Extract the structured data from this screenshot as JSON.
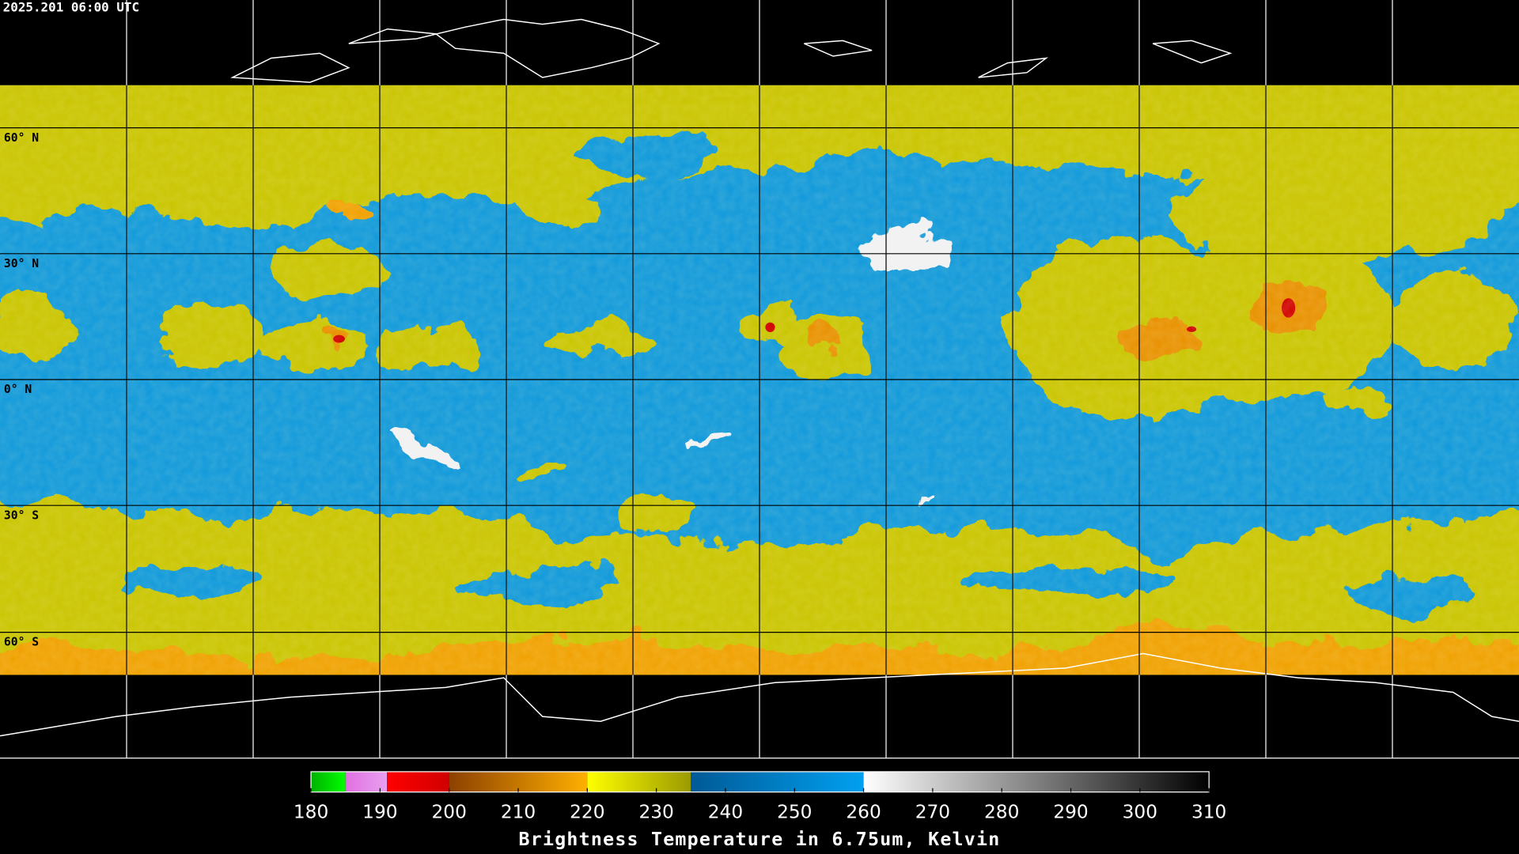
{
  "header": {
    "timestamp": "2025.201 06:00 UTC"
  },
  "latitude_labels": [
    "60° N",
    "30° N",
    "0° N",
    "30° S",
    "60° S"
  ],
  "colorbar": {
    "title": "Brightness Temperature in 6.75um, Kelvin",
    "lim": [
      180,
      310
    ],
    "ticks": [
      180,
      190,
      200,
      210,
      220,
      230,
      240,
      250,
      260,
      270,
      280,
      290,
      300,
      310
    ],
    "segments": [
      {
        "from": 180,
        "to": 185,
        "colors": [
          "#00b000",
          "#00ff00"
        ]
      },
      {
        "from": 185,
        "to": 191,
        "colors": [
          "#e070e0",
          "#e8a0f0"
        ]
      },
      {
        "from": 191,
        "to": 200,
        "colors": [
          "#ff0000",
          "#d00000"
        ]
      },
      {
        "from": 200,
        "to": 220,
        "colors": [
          "#8c4000",
          "#ffb000"
        ]
      },
      {
        "from": 220,
        "to": 235,
        "colors": [
          "#ffff00",
          "#9a9a00"
        ]
      },
      {
        "from": 235,
        "to": 260,
        "colors": [
          "#005a96",
          "#00a0f0"
        ]
      },
      {
        "from": 260,
        "to": 310,
        "colors": [
          "#ffffff",
          "#000000"
        ]
      }
    ]
  }
}
